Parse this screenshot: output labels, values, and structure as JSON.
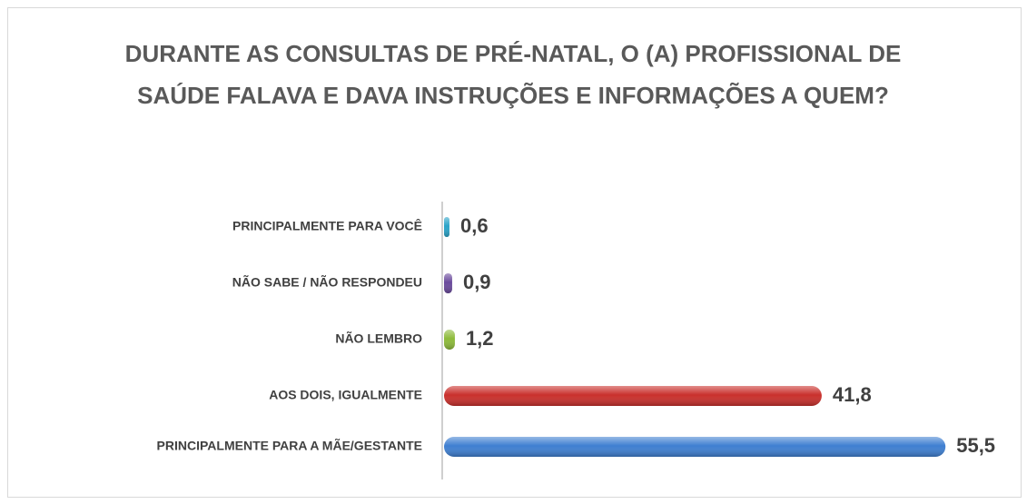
{
  "chart_data": {
    "type": "bar",
    "orientation": "horizontal",
    "title": "DURANTE AS CONSULTAS DE PRÉ-NATAL, O (A) PROFISSIONAL DE SAÚDE FALAVA E DAVA INSTRUÇÕES E INFORMAÇÕES A QUEM?",
    "categories": [
      "PRINCIPALMENTE PARA VOCÊ",
      "NÃO SABE / NÃO RESPONDEU",
      "NÃO LEMBRO",
      "AOS DOIS, IGUALMENTE",
      "PRINCIPALMENTE PARA A MÃE/GESTANTE"
    ],
    "values": [
      0.6,
      0.9,
      1.2,
      41.8,
      55.5
    ],
    "value_labels": [
      "0,6",
      "0,9",
      "1,2",
      "41,8",
      "55,5"
    ],
    "colors": [
      "#2aa3c8",
      "#6a4a9c",
      "#8dba3a",
      "#c9302c",
      "#3f7fd1"
    ]
  }
}
